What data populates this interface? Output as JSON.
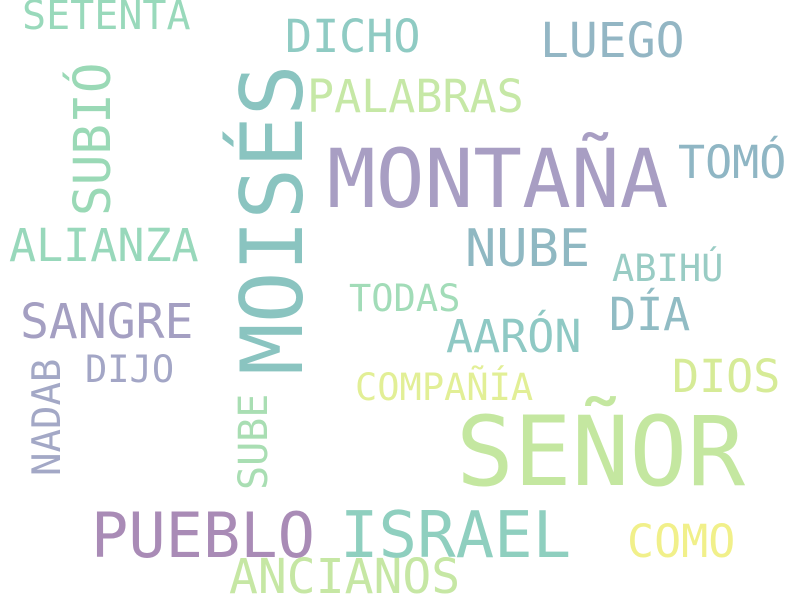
{
  "words": {
    "senor": {
      "text": "SEÑOR",
      "color": "#c4e7a0"
    },
    "montana": {
      "text": "MONTAÑA",
      "color": "#a89ec3"
    },
    "moises": {
      "text": "MOISÉS",
      "color": "#8ac4c0"
    },
    "israel": {
      "text": "ISRAEL",
      "color": "#8fcfbf"
    },
    "pueblo": {
      "text": "PUEBLO",
      "color": "#a98bb6"
    },
    "nube": {
      "text": "NUBE",
      "color": "#8fb8c2"
    },
    "luego": {
      "text": "LUEGO",
      "color": "#93b6c4"
    },
    "tomo": {
      "text": "TOMÓ",
      "color": "#8fb6c4"
    },
    "alianza": {
      "text": "ALIANZA",
      "color": "#98d8bb"
    },
    "sangre": {
      "text": "SANGRE",
      "color": "#a49fc2"
    },
    "dia": {
      "text": "DÍA",
      "color": "#91bcc4"
    },
    "aaron": {
      "text": "AARÓN",
      "color": "#8fc9c4"
    },
    "dios": {
      "text": "DIOS",
      "color": "#d6eb97"
    },
    "dicho": {
      "text": "DICHO",
      "color": "#8fcbc3"
    },
    "palabras": {
      "text": "PALABRAS",
      "color": "#c6e8a6"
    },
    "ancianos": {
      "text": "ANCIANOS",
      "color": "#c6e7a4"
    },
    "como": {
      "text": "COMO",
      "color": "#f1f08a"
    },
    "setenta": {
      "text": "SETENTA",
      "color": "#99d9bb"
    },
    "subio": {
      "text": "SUBIÓ",
      "color": "#9ad9b6"
    },
    "abihu": {
      "text": "ABIHÚ",
      "color": "#99ccc4"
    },
    "todas": {
      "text": "TODAS",
      "color": "#a2dcb8"
    },
    "dijo": {
      "text": "DIJO",
      "color": "#a3a6c6"
    },
    "compania": {
      "text": "COMPAÑÍA",
      "color": "#e2ef96"
    },
    "sube": {
      "text": "SUBE",
      "color": "#a9deb3"
    },
    "nadab": {
      "text": "NADAB",
      "color": "#a3a8c6"
    }
  }
}
